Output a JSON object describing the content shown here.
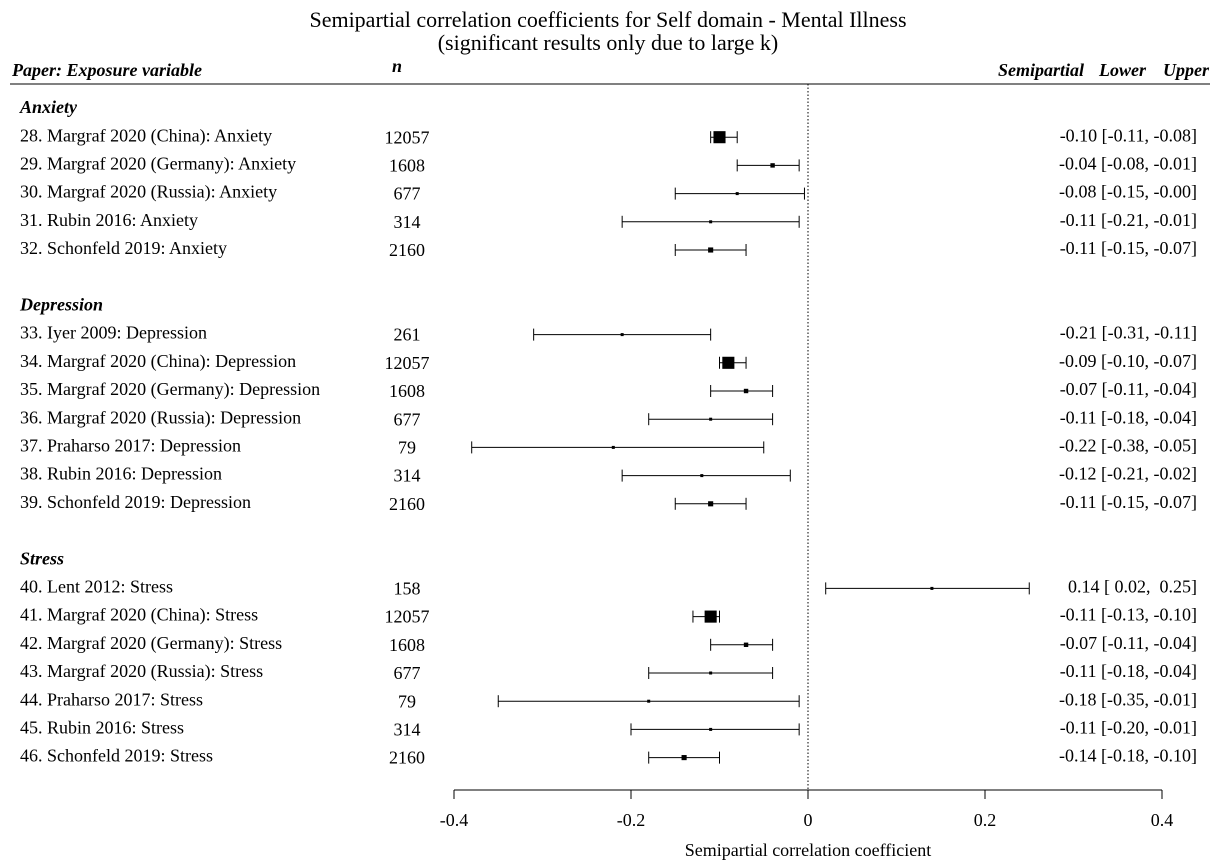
{
  "chart_data": {
    "type": "forest",
    "title": "Semipartial correlation coefficients for Self domain - Mental Illness",
    "subtitle": "(significant results only due to large k)",
    "columns": [
      "Paper: Exposure variable",
      "n",
      "Semipartial",
      "Lower",
      "Upper"
    ],
    "xlabel": "Semipartial correlation coefficient",
    "xlim": [
      -0.4,
      0.4
    ],
    "xticks": [
      -0.4,
      -0.2,
      0,
      0.2,
      0.4
    ],
    "color": "#000000",
    "groups": [
      {
        "name": "Anxiety",
        "rows": [
          {
            "label": "28. Margraf 2020 (China): Anxiety",
            "n": 12057,
            "value": -0.1,
            "lower": -0.11,
            "upper": -0.08,
            "value_label": "-0.10 [-0.11, -0.08]"
          },
          {
            "label": "29. Margraf 2020 (Germany): Anxiety",
            "n": 1608,
            "value": -0.04,
            "lower": -0.08,
            "upper": -0.01,
            "value_label": "-0.04 [-0.08, -0.01]"
          },
          {
            "label": "30. Margraf 2020 (Russia): Anxiety",
            "n": 677,
            "value": -0.08,
            "lower": -0.15,
            "upper": -0.004,
            "value_label": "-0.08 [-0.15, -0.00]"
          },
          {
            "label": "31. Rubin 2016: Anxiety",
            "n": 314,
            "value": -0.11,
            "lower": -0.21,
            "upper": -0.01,
            "value_label": "-0.11 [-0.21, -0.01]"
          },
          {
            "label": "32. Schonfeld 2019: Anxiety",
            "n": 2160,
            "value": -0.11,
            "lower": -0.15,
            "upper": -0.07,
            "value_label": "-0.11 [-0.15, -0.07]"
          }
        ]
      },
      {
        "name": "Depression",
        "rows": [
          {
            "label": "33. Iyer 2009: Depression",
            "n": 261,
            "value": -0.21,
            "lower": -0.31,
            "upper": -0.11,
            "value_label": "-0.21 [-0.31, -0.11]"
          },
          {
            "label": "34. Margraf 2020 (China): Depression",
            "n": 12057,
            "value": -0.09,
            "lower": -0.1,
            "upper": -0.07,
            "value_label": "-0.09 [-0.10, -0.07]"
          },
          {
            "label": "35. Margraf 2020 (Germany): Depression",
            "n": 1608,
            "value": -0.07,
            "lower": -0.11,
            "upper": -0.04,
            "value_label": "-0.07 [-0.11, -0.04]"
          },
          {
            "label": "36. Margraf 2020 (Russia): Depression",
            "n": 677,
            "value": -0.11,
            "lower": -0.18,
            "upper": -0.04,
            "value_label": "-0.11 [-0.18, -0.04]"
          },
          {
            "label": "37. Praharso 2017: Depression",
            "n": 79,
            "value": -0.22,
            "lower": -0.38,
            "upper": -0.05,
            "value_label": "-0.22 [-0.38, -0.05]"
          },
          {
            "label": "38. Rubin 2016: Depression",
            "n": 314,
            "value": -0.12,
            "lower": -0.21,
            "upper": -0.02,
            "value_label": "-0.12 [-0.21, -0.02]"
          },
          {
            "label": "39. Schonfeld 2019: Depression",
            "n": 2160,
            "value": -0.11,
            "lower": -0.15,
            "upper": -0.07,
            "value_label": "-0.11 [-0.15, -0.07]"
          }
        ]
      },
      {
        "name": "Stress",
        "rows": [
          {
            "label": "40. Lent 2012: Stress",
            "n": 158,
            "value": 0.14,
            "lower": 0.02,
            "upper": 0.25,
            "value_label": " 0.14 [ 0.02,  0.25]"
          },
          {
            "label": "41. Margraf 2020 (China): Stress",
            "n": 12057,
            "value": -0.11,
            "lower": -0.13,
            "upper": -0.1,
            "value_label": "-0.11 [-0.13, -0.10]"
          },
          {
            "label": "42. Margraf 2020 (Germany): Stress",
            "n": 1608,
            "value": -0.07,
            "lower": -0.11,
            "upper": -0.04,
            "value_label": "-0.07 [-0.11, -0.04]"
          },
          {
            "label": "43. Margraf 2020 (Russia): Stress",
            "n": 677,
            "value": -0.11,
            "lower": -0.18,
            "upper": -0.04,
            "value_label": "-0.11 [-0.18, -0.04]"
          },
          {
            "label": "44. Praharso 2017: Stress",
            "n": 79,
            "value": -0.18,
            "lower": -0.35,
            "upper": -0.01,
            "value_label": "-0.18 [-0.35, -0.01]"
          },
          {
            "label": "45. Rubin 2016: Stress",
            "n": 314,
            "value": -0.11,
            "lower": -0.2,
            "upper": -0.01,
            "value_label": "-0.11 [-0.20, -0.01]"
          },
          {
            "label": "46. Schonfeld 2019: Stress",
            "n": 2160,
            "value": -0.14,
            "lower": -0.18,
            "upper": -0.1,
            "value_label": "-0.14 [-0.18, -0.10]"
          }
        ]
      }
    ]
  }
}
